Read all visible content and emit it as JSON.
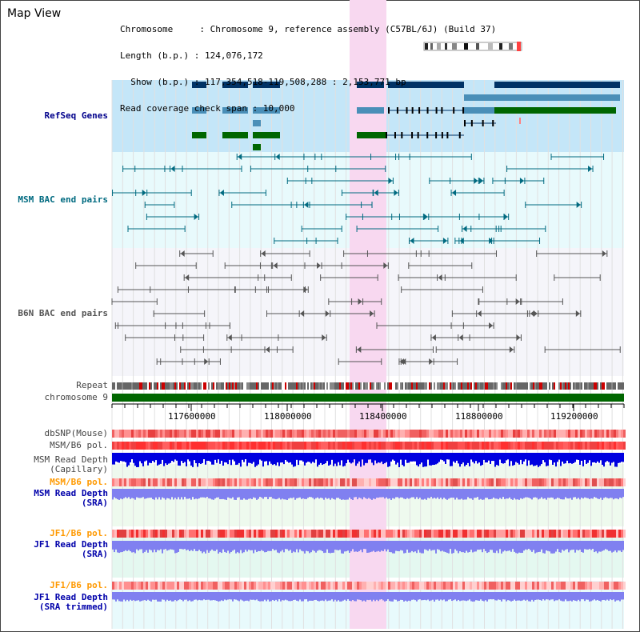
{
  "header": {
    "title": "Map View",
    "info_lines": [
      "Chromosome     : Chromosome 9, reference assembly (C57BL/6J) (Build 37)",
      "Length (b.p.) : 124,076,172",
      "  Show (b.p.) : 117,354,518-119,508,288 : 2,153,771 bp",
      "Read coverage check span : 10,000"
    ]
  },
  "tracks": {
    "refseq": "RefSeq Genes",
    "msm_bac": "MSM BAC end pairs",
    "b6n_bac": "B6N BAC end pairs",
    "repeat": "Repeat",
    "chromosome": "chromosome 9",
    "dbsnp": "dbSNP(Mouse)",
    "msm_b6_pol": "MSM/B6 pol.",
    "msm_depth_cap": "MSM Read Depth\n(Capillary)",
    "msm_b6_pol2": "MSM/B6 pol.",
    "msm_depth_sra": "MSM Read Depth\n(SRA)",
    "jf1_b6_pol": "JF1/B6 pol.",
    "jf1_depth_sra": "JF1 Read Depth\n(SRA)",
    "jf1_b6_pol2": "JF1/B6 pol.",
    "jf1_depth_trim": "JF1 Read Depth\n(SRA trimmed)"
  },
  "axis": {
    "ticks": [
      "117600000",
      "118000000",
      "118400000",
      "118800000",
      "119200000"
    ]
  },
  "colors": {
    "gene_dark": "#003366",
    "gene_mid": "#4a8fb8",
    "gene_green": "#006600",
    "highlight": "#f8d8f0",
    "msm_line": "#006a80",
    "b6n_line": "#555555",
    "depth_blue": "#0000e0",
    "sra_blue": "#8080f0"
  }
}
